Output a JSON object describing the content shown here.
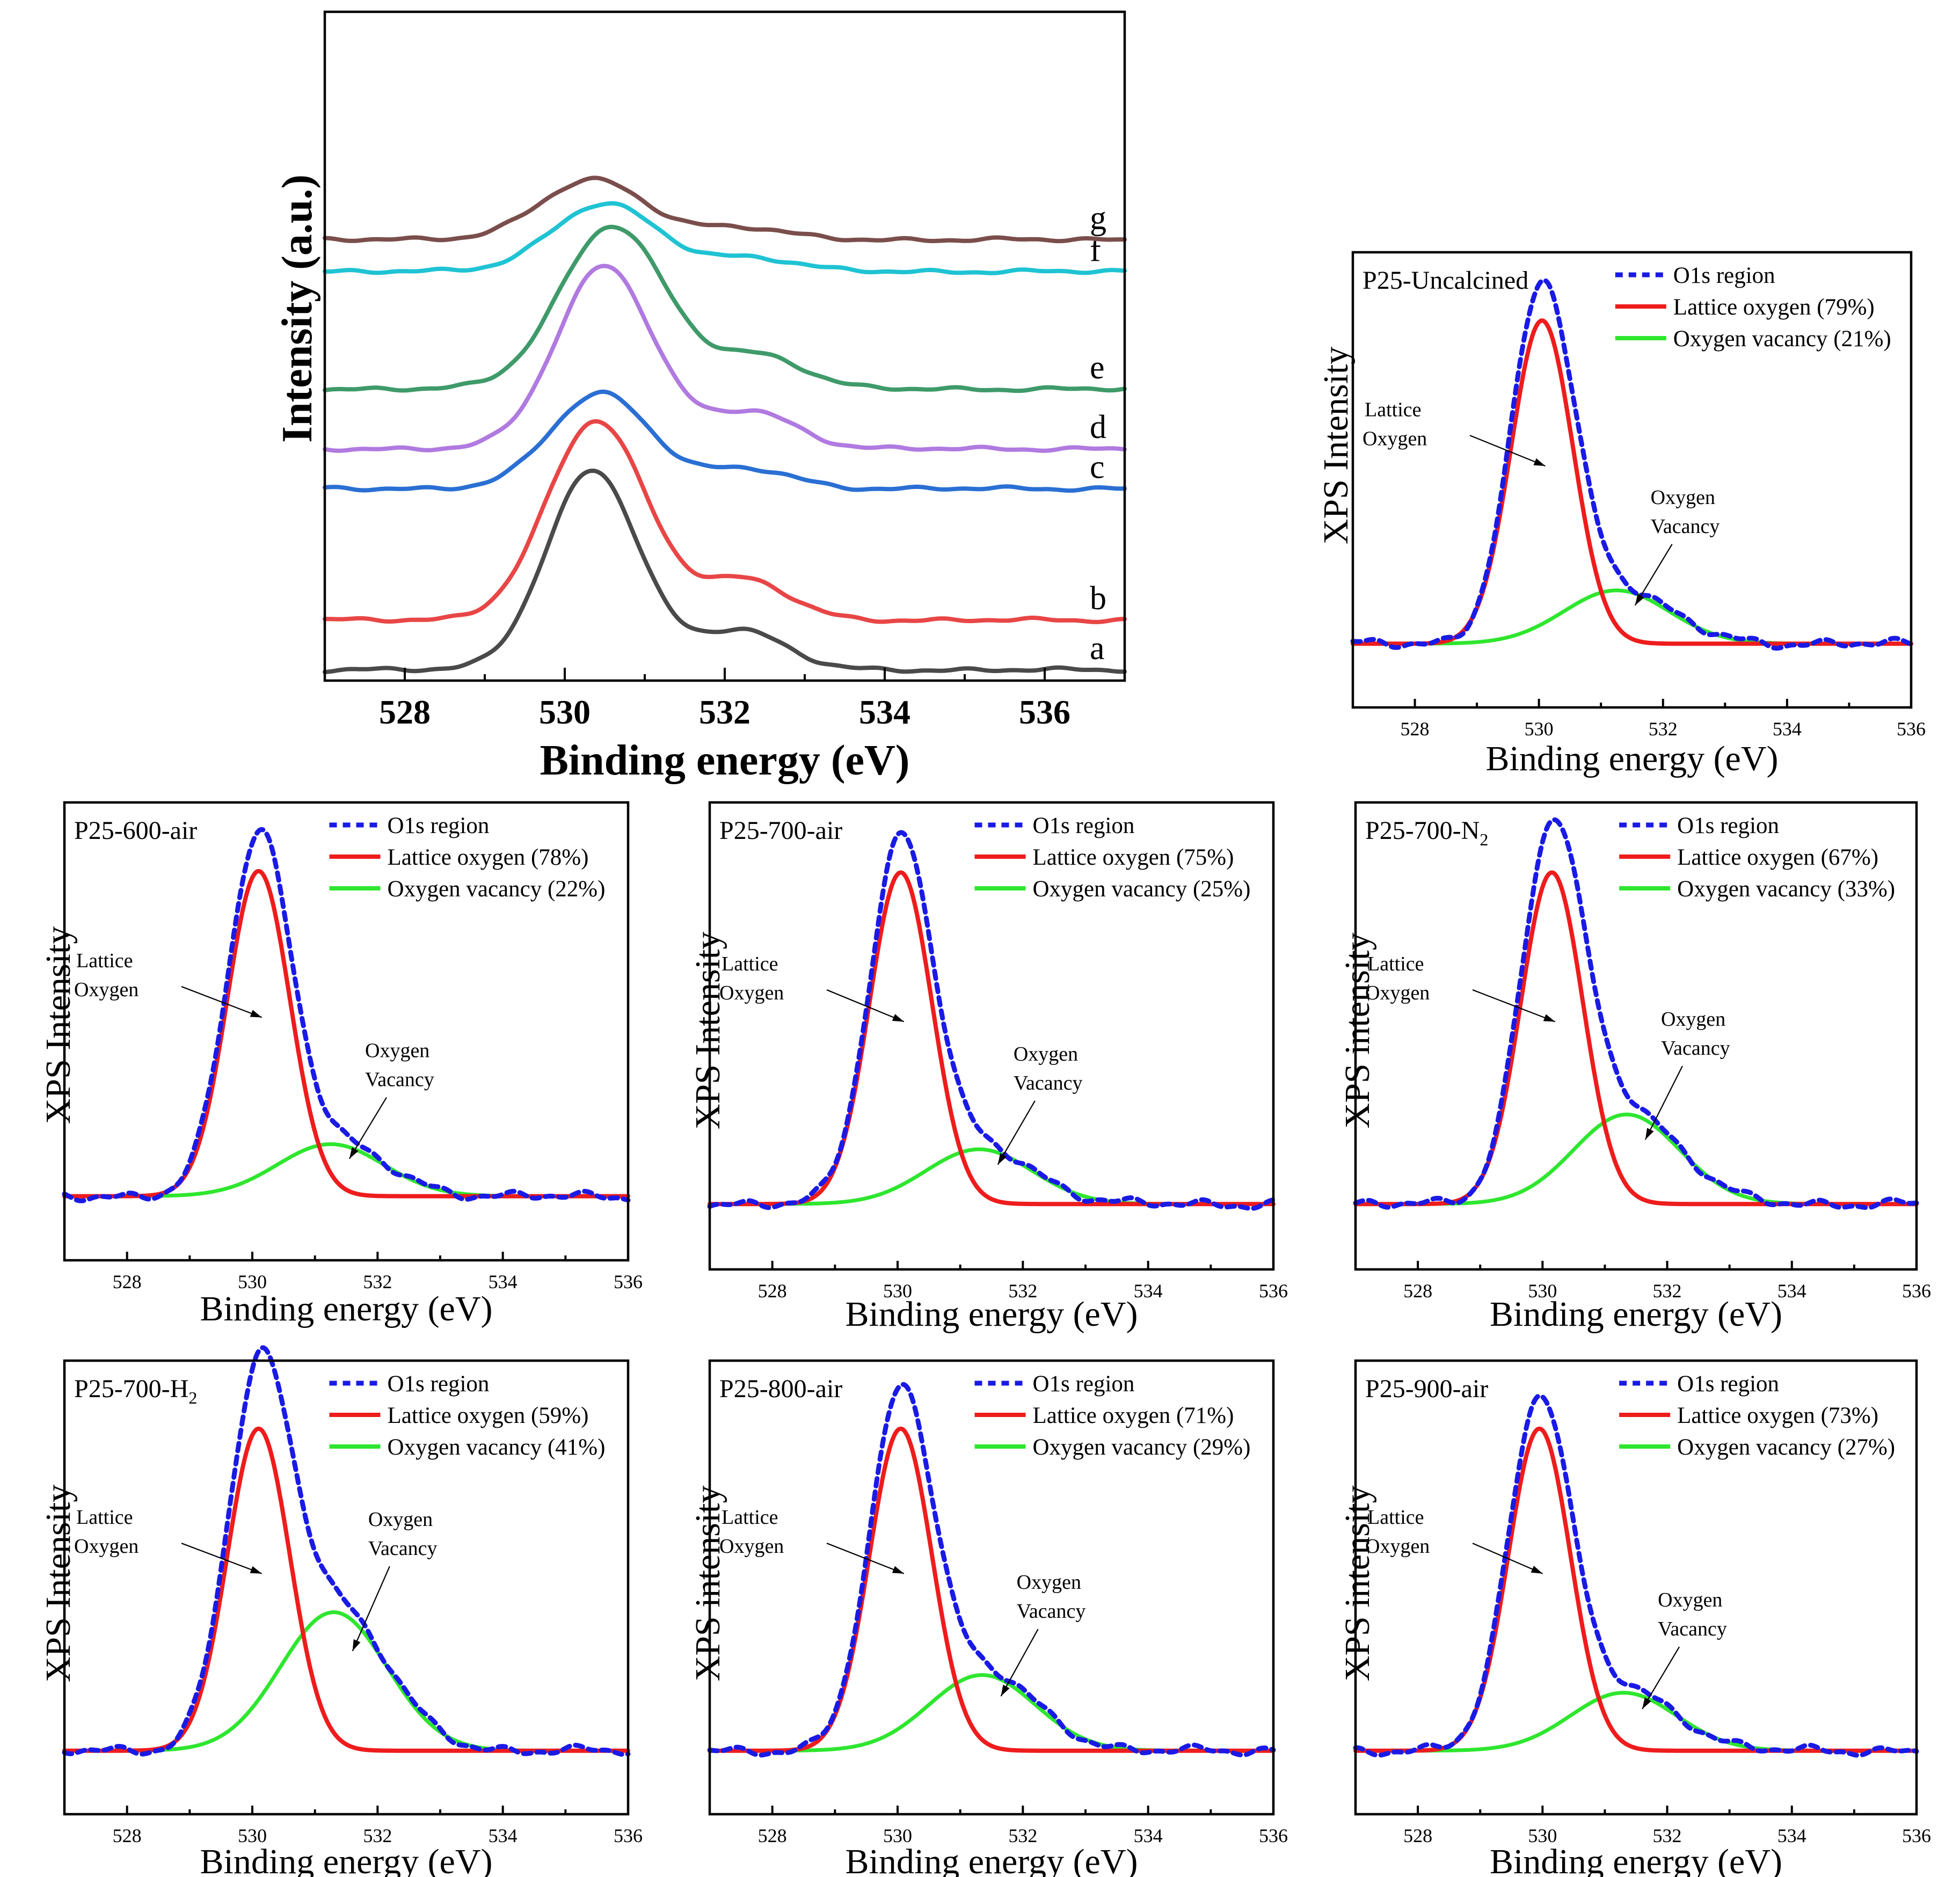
{
  "chart_data": [
    {
      "type": "line",
      "id": "main",
      "xlabel": "Binding energy (eV)",
      "ylabel": "Intensity (a.u.)",
      "xlim": [
        527,
        537
      ],
      "xticks": [
        528,
        530,
        532,
        534,
        536
      ],
      "series": [
        {
          "label": "a",
          "color": "#4a4a4a",
          "baseline": 0.0,
          "peak_center": 530.35,
          "peak_height": 1.0,
          "peak_sigma": 0.58
        },
        {
          "label": "b",
          "color": "#e84646",
          "baseline": 0.25,
          "peak_center": 530.4,
          "peak_height": 1.0,
          "peak_sigma": 0.62
        },
        {
          "label": "c",
          "color": "#2a6fd3",
          "baseline": 0.91,
          "peak_center": 530.45,
          "peak_height": 0.48,
          "peak_sigma": 0.62
        },
        {
          "label": "d",
          "color": "#b07ae0",
          "baseline": 1.11,
          "peak_center": 530.5,
          "peak_height": 0.92,
          "peak_sigma": 0.6
        },
        {
          "label": "e",
          "color": "#3f9a6a",
          "baseline": 1.41,
          "peak_center": 530.6,
          "peak_height": 0.82,
          "peak_sigma": 0.66
        },
        {
          "label": "f",
          "color": "#1fc3d3",
          "baseline": 2.0,
          "peak_center": 530.5,
          "peak_height": 0.34,
          "peak_sigma": 0.66
        },
        {
          "label": "g",
          "color": "#7a4e4c",
          "baseline": 2.16,
          "peak_center": 530.35,
          "peak_height": 0.3,
          "peak_sigma": 0.66
        }
      ]
    },
    {
      "type": "line",
      "id": "uncalcined",
      "sample": "P25-Uncalcined",
      "xlabel": "Binding energy (eV)",
      "ylabel": "XPS Intensity",
      "xlim": [
        527,
        536
      ],
      "xticks": [
        528,
        530,
        532,
        534,
        536
      ],
      "lattice_center": 530.05,
      "lattice_height": 1.0,
      "vacancy_center": 531.25,
      "vacancy_height": 0.165,
      "legend": [
        "O1s region",
        "Lattice oxygen (79%)",
        "Oxygen vacancy (21%)"
      ],
      "annotations": [
        "Lattice",
        "Oxygen",
        "Oxygen",
        "Vacancy"
      ]
    },
    {
      "type": "line",
      "id": "air600",
      "sample": "P25-600-air",
      "xlabel": "Binding energy (eV)",
      "ylabel": "XPS Intensity",
      "xlim": [
        527,
        536
      ],
      "xticks": [
        528,
        530,
        532,
        534,
        536
      ],
      "lattice_center": 530.1,
      "lattice_height": 1.0,
      "vacancy_center": 531.25,
      "vacancy_height": 0.16,
      "legend": [
        "O1s region",
        "Lattice oxygen (78%)",
        "Oxygen vacancy (22%)"
      ],
      "annotations": [
        "Lattice",
        "Oxygen",
        "Oxygen",
        "Vacancy"
      ]
    },
    {
      "type": "line",
      "id": "air700",
      "sample": "P25-700-air",
      "xlabel": "Binding energy (eV)",
      "ylabel": "XPS Intensity",
      "xlim": [
        527,
        536
      ],
      "xticks": [
        528,
        530,
        532,
        534,
        536
      ],
      "lattice_center": 530.05,
      "lattice_height": 1.0,
      "vacancy_center": 531.3,
      "vacancy_height": 0.165,
      "legend": [
        "O1s region",
        "Lattice oxygen (75%)",
        "Oxygen vacancy (25%)"
      ],
      "annotations": [
        "Lattice",
        "Oxygen",
        "Oxygen",
        "Vacancy"
      ]
    },
    {
      "type": "line",
      "id": "n2700",
      "sample": "P25-700-N",
      "sample_subscript": "2",
      "xlabel": "Binding energy (eV)",
      "ylabel": "XPS intensity",
      "xlim": [
        527,
        536
      ],
      "xticks": [
        528,
        530,
        532,
        534,
        536
      ],
      "lattice_center": 530.15,
      "lattice_height": 1.0,
      "vacancy_center": 531.35,
      "vacancy_height": 0.27,
      "legend": [
        "O1s region",
        "Lattice oxygen (67%)",
        "Oxygen vacancy (33%)"
      ],
      "annotations": [
        "Lattice",
        "Oxygen",
        "Oxygen",
        "Vacancy"
      ]
    },
    {
      "type": "line",
      "id": "h2700",
      "sample": "P25-700-H",
      "sample_subscript": "2",
      "xlabel": "Binding energy (eV)",
      "ylabel": "XPS Intensity",
      "xlim": [
        527,
        536
      ],
      "xticks": [
        528,
        530,
        532,
        534,
        536
      ],
      "lattice_center": 530.1,
      "lattice_height": 1.0,
      "vacancy_center": 531.3,
      "vacancy_height": 0.43,
      "legend": [
        "O1s region",
        "Lattice oxygen (59%)",
        "Oxygen vacancy (41%)"
      ],
      "annotations": [
        "Lattice",
        "Oxygen",
        "Oxygen",
        "Vacancy"
      ]
    },
    {
      "type": "line",
      "id": "air800",
      "sample": "P25-800-air",
      "xlabel": "Binding energy (eV)",
      "ylabel": "XPS intensity",
      "xlim": [
        527,
        536
      ],
      "xticks": [
        528,
        530,
        532,
        534,
        536
      ],
      "lattice_center": 530.05,
      "lattice_height": 1.0,
      "vacancy_center": 531.35,
      "vacancy_height": 0.235,
      "legend": [
        "O1s region",
        "Lattice oxygen (71%)",
        "Oxygen vacancy (29%)"
      ],
      "annotations": [
        "Lattice",
        "Oxygen",
        "Oxygen",
        "Vacancy"
      ]
    },
    {
      "type": "line",
      "id": "air900",
      "sample": "P25-900-air",
      "xlabel": "Binding energy (eV)",
      "ylabel": "XPS intensity",
      "xlim": [
        527,
        536
      ],
      "xticks": [
        528,
        530,
        532,
        534,
        536
      ],
      "lattice_center": 529.95,
      "lattice_height": 1.0,
      "vacancy_center": 531.3,
      "vacancy_height": 0.18,
      "legend": [
        "O1s region",
        "Lattice oxygen (73%)",
        "Oxygen vacancy (27%)"
      ],
      "annotations": [
        "Lattice",
        "Oxygen",
        "Oxygen",
        "Vacancy"
      ]
    }
  ],
  "colors": {
    "o1s": "#1a1ae6",
    "lattice": "#ee1c1c",
    "vacancy": "#2ee62e",
    "axis": "#000000"
  }
}
